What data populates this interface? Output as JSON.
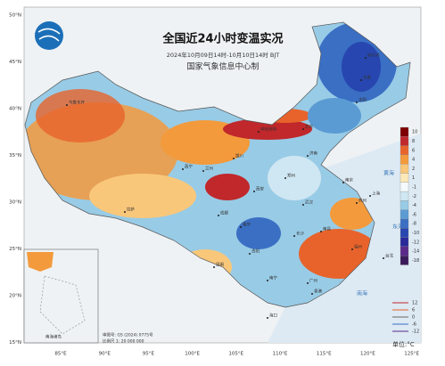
{
  "header": {
    "title": "全国近24小时变温实况",
    "subtitle": "2024年10月09日14时-10月10日14时 BJT",
    "producer": "国家气象信息中心制"
  },
  "lat_labels": [
    "50°N",
    "45°N",
    "40°N",
    "35°N",
    "30°N",
    "25°N",
    "20°N",
    "15°N"
  ],
  "lon_labels": [
    "85°E",
    "90°E",
    "95°E",
    "100°E",
    "105°E",
    "110°E",
    "115°E",
    "120°E",
    "125°E"
  ],
  "cities": [
    "乌鲁木齐",
    "呼和浩特",
    "银川",
    "兰州",
    "西宁",
    "拉萨",
    "成都",
    "重庆",
    "贵阳",
    "昆明",
    "南宁",
    "广州",
    "海口",
    "长沙",
    "武汉",
    "南昌",
    "福州",
    "杭州",
    "上海",
    "南京",
    "郑州",
    "济南",
    "北京",
    "沈阳",
    "长春",
    "哈尔滨",
    "西安",
    "台北",
    "香港"
  ],
  "seas": [
    "黄海",
    "东海",
    "南海"
  ],
  "legend": {
    "items": [
      {
        "label": 10,
        "color": "#7f0000"
      },
      {
        "label": 8,
        "color": "#c0282b"
      },
      {
        "label": 6,
        "color": "#e8632b"
      },
      {
        "label": 4,
        "color": "#f39a3c"
      },
      {
        "label": 2,
        "color": "#f9c77a"
      },
      {
        "label": 1,
        "color": "#fde9b8"
      },
      {
        "label": -1,
        "color": "#f4f9fb"
      },
      {
        "label": -2,
        "color": "#cfe7f2"
      },
      {
        "label": -4,
        "color": "#98cbe6"
      },
      {
        "label": -6,
        "color": "#5a9bd4"
      },
      {
        "label": -8,
        "color": "#3a6fc4"
      },
      {
        "label": -10,
        "color": "#2846b0"
      },
      {
        "label": -12,
        "color": "#2a2a9a"
      },
      {
        "label": -14,
        "color": "#5a2a8a"
      },
      {
        "label": -18,
        "color": "#3a1a5a"
      }
    ],
    "unit": "单位:°C"
  },
  "line_legend": [
    12,
    6,
    0,
    -6,
    -12
  ],
  "inset": {
    "label": "南海诸岛"
  },
  "footnote": {
    "approval": "审图号: GS (2024) 0775号",
    "scale": "比例尺 1: 20 000 000"
  }
}
